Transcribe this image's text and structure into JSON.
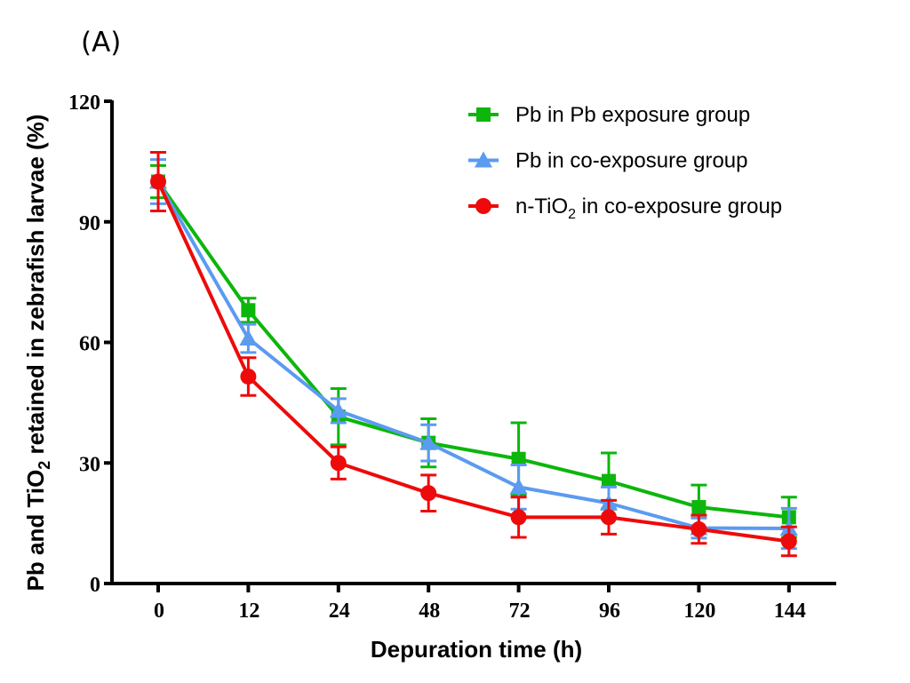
{
  "panel_label": "(A)",
  "chart_data": {
    "type": "line",
    "title": "",
    "xlabel": "Depuration time (h)",
    "ylabel_parts": {
      "before": "Pb and TiO",
      "subscript": "2",
      "after": " retained in zebrafish larvae (%)"
    },
    "ylabel": "Pb and TiO2 retained in zebrafish larvae (%)",
    "categories": [
      "0",
      "12",
      "24",
      "48",
      "72",
      "96",
      "120",
      "144"
    ],
    "yticks": [
      "0",
      "30",
      "60",
      "90",
      "120"
    ],
    "ylim": [
      0,
      120
    ],
    "grid": false,
    "legend_position": "top-right",
    "series": [
      {
        "name": "Pb in Pb exposure group",
        "legend": {
          "before": "Pb in Pb exposure group",
          "subscript": "",
          "after": ""
        },
        "marker": "square",
        "color": "#0cb60c",
        "values": [
          100,
          68,
          41.5,
          35,
          31,
          25.5,
          19,
          16.5
        ],
        "errors": [
          4,
          3,
          7,
          6,
          9,
          7,
          5.5,
          5
        ]
      },
      {
        "name": "Pb in co-exposure group",
        "legend": {
          "before": "Pb in co-exposure group",
          "subscript": "",
          "after": ""
        },
        "marker": "triangle",
        "color": "#5b9bf0",
        "values": [
          100,
          61,
          43,
          35,
          24,
          20,
          13.8,
          13.7
        ],
        "errors": [
          5.5,
          3.5,
          3,
          4.5,
          5.5,
          4,
          2.5,
          5
        ]
      },
      {
        "name": "n-TiO2 in co-exposure group",
        "legend": {
          "before": "n-TiO",
          "subscript": "2",
          "after": " in co-exposure group"
        },
        "marker": "circle",
        "color": "#ee0a0a",
        "values": [
          100,
          51.5,
          30,
          22.5,
          16.5,
          16.5,
          13.5,
          10.5
        ],
        "errors": [
          7.3,
          4.7,
          4,
          4.5,
          5,
          4.2,
          3.5,
          3.6
        ]
      }
    ]
  }
}
